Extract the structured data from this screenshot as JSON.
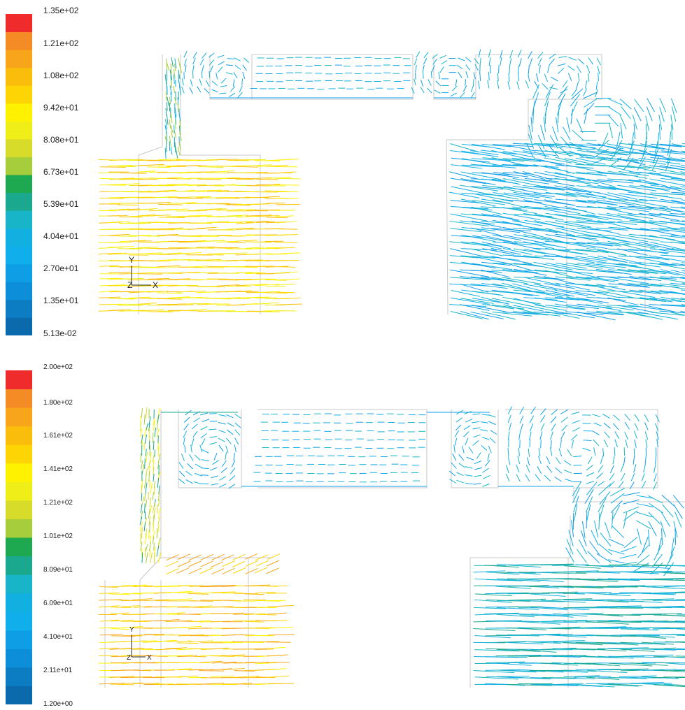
{
  "colormap": [
    "#0a6aac",
    "#0c7cc3",
    "#0d8ed8",
    "#0e9ee6",
    "#10aeea",
    "#12b0e0",
    "#18b5c9",
    "#1aa88e",
    "#1ea84f",
    "#a6cd3b",
    "#d7dc2a",
    "#f0ee18",
    "#fff200",
    "#fed504",
    "#fbbd0b",
    "#f9a51c",
    "#f48b24",
    "#ef2b2b"
  ],
  "panels": [
    {
      "legend_labels": [
        "1.35e+02",
        "1.21e+02",
        "1.08e+02",
        "9.42e+01",
        "8.08e+01",
        "6.73e+01",
        "5.39e+01",
        "4.04e+01",
        "2.70e+01",
        "1.35e+01",
        "5.13e-02"
      ],
      "axis": {
        "y": "Y",
        "z": "Z",
        "x": "X"
      }
    },
    {
      "legend_labels": [
        "2.00e+02",
        "1.80e+02",
        "1.61e+02",
        "1.41e+02",
        "1.21e+02",
        "1.01e+02",
        "8.09e+01",
        "6.09e+01",
        "4.10e+01",
        "2.11e+01",
        "1.20e+00"
      ],
      "axis": {
        "y": "Y",
        "z": "Z",
        "x": "X"
      }
    }
  ]
}
